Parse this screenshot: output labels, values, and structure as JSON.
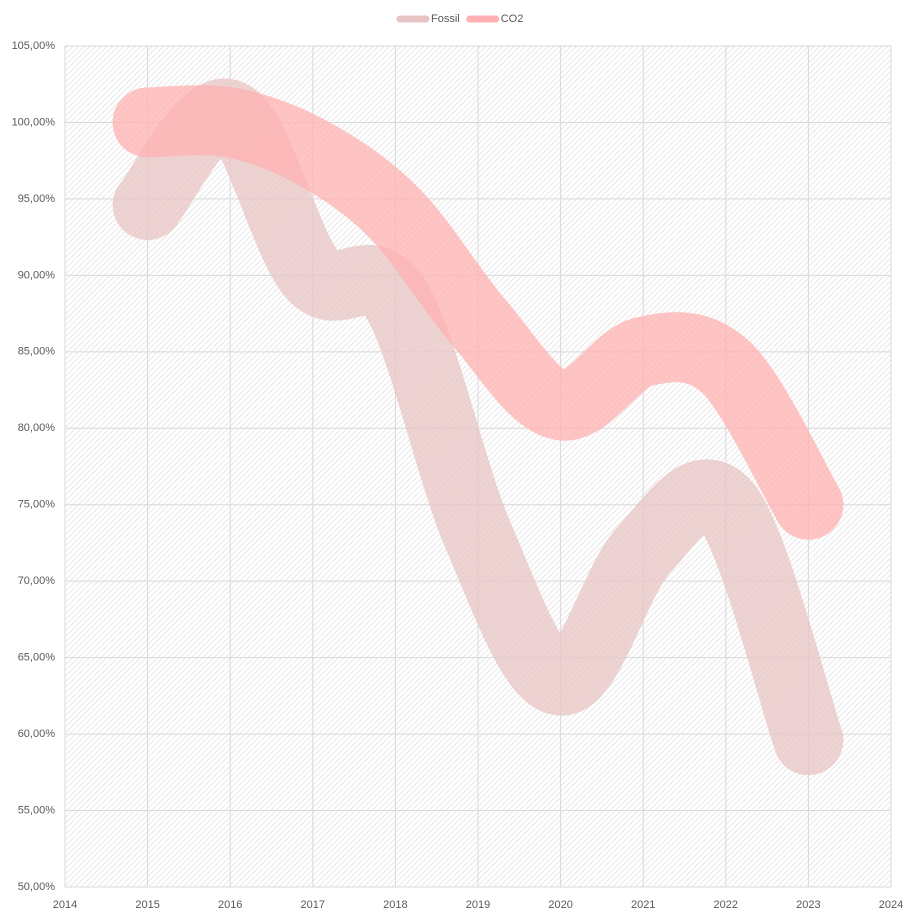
{
  "chart_data": {
    "type": "line",
    "smooth": true,
    "x": [
      2015,
      2016,
      2017,
      2018,
      2019,
      2020,
      2021,
      2022,
      2023
    ],
    "series": [
      {
        "name": "Fossil",
        "color": "#e8c4c4",
        "values": [
          94.6,
          100.5,
          90,
          88.5,
          73,
          63.5,
          72,
          75,
          59.6
        ]
      },
      {
        "name": "CO2",
        "color": "#ffb0b0",
        "values": [
          100,
          100,
          98,
          94,
          87,
          81.5,
          85,
          84,
          75
        ]
      }
    ],
    "xlim": [
      2014,
      2024
    ],
    "xticks": [
      2014,
      2015,
      2016,
      2017,
      2018,
      2019,
      2020,
      2021,
      2022,
      2023,
      2024
    ],
    "ylim": [
      50,
      105
    ],
    "yticks": [
      {
        "value": 50,
        "label": "50,00%"
      },
      {
        "value": 55,
        "label": "55,00%"
      },
      {
        "value": 60,
        "label": "60,00%"
      },
      {
        "value": 65,
        "label": "65,00%"
      },
      {
        "value": 70,
        "label": "70,00%"
      },
      {
        "value": 75,
        "label": "75,00%"
      },
      {
        "value": 80,
        "label": "80,00%"
      },
      {
        "value": 85,
        "label": "85,00%"
      },
      {
        "value": 90,
        "label": "90,00%"
      },
      {
        "value": 95,
        "label": "95,00%"
      },
      {
        "value": 100,
        "label": "100,00%"
      },
      {
        "value": 105,
        "label": "105,00%"
      }
    ],
    "grid": true,
    "legend": "top"
  }
}
